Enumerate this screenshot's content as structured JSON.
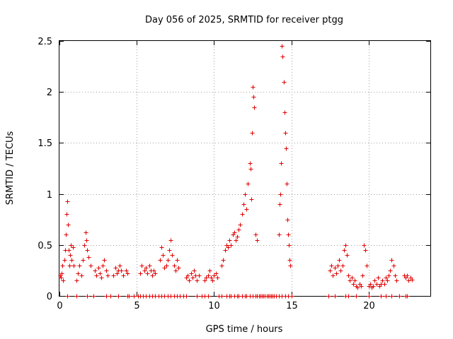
{
  "chart_data": {
    "type": "scatter",
    "title": "Day 056 of 2025, SRMTID for receiver ptgg",
    "xlabel": "GPS time / hours",
    "ylabel": "SRMTID / TECUs",
    "xlim": [
      0,
      24
    ],
    "ylim": [
      0,
      2.5
    ],
    "xticks": [
      0,
      5,
      10,
      15,
      20
    ],
    "yticks": [
      0,
      0.5,
      1,
      1.5,
      2,
      2.5
    ],
    "xtick_labels": [
      "0",
      "5",
      "10",
      "15",
      "20"
    ],
    "ytick_labels": [
      "0",
      "0.5",
      "1",
      "1.5",
      "2",
      "2.5"
    ],
    "grid": true,
    "marker": "+",
    "color": "#e00000",
    "series": [
      {
        "name": "SRMTID",
        "points": [
          [
            0.05,
            0.2
          ],
          [
            0.1,
            0.18
          ],
          [
            0.15,
            0.22
          ],
          [
            0.2,
            0.3
          ],
          [
            0.25,
            0.15
          ],
          [
            0.3,
            0.35
          ],
          [
            0.35,
            0.45
          ],
          [
            0.4,
            0.6
          ],
          [
            0.45,
            0.8
          ],
          [
            0.5,
            0.93
          ],
          [
            0.55,
            0.7
          ],
          [
            0.6,
            0.45
          ],
          [
            0.65,
            0.3
          ],
          [
            0.7,
            0.4
          ],
          [
            0.75,
            0.5
          ],
          [
            0.8,
            0.35
          ],
          [
            0.85,
            0.48
          ],
          [
            0.9,
            0.3
          ],
          [
            1.1,
            0.15
          ],
          [
            1.2,
            0.22
          ],
          [
            1.3,
            0.3
          ],
          [
            1.4,
            0.2
          ],
          [
            1.5,
            0.35
          ],
          [
            1.6,
            0.5
          ],
          [
            1.7,
            0.62
          ],
          [
            1.75,
            0.55
          ],
          [
            1.8,
            0.45
          ],
          [
            1.9,
            0.38
          ],
          [
            2.0,
            0.3
          ],
          [
            2.3,
            0.25
          ],
          [
            2.4,
            0.2
          ],
          [
            2.5,
            0.28
          ],
          [
            2.6,
            0.22
          ],
          [
            2.7,
            0.18
          ],
          [
            2.8,
            0.3
          ],
          [
            2.9,
            0.35
          ],
          [
            3.0,
            0.25
          ],
          [
            3.1,
            0.2
          ],
          [
            3.5,
            0.2
          ],
          [
            3.6,
            0.28
          ],
          [
            3.7,
            0.22
          ],
          [
            3.8,
            0.25
          ],
          [
            3.9,
            0.3
          ],
          [
            4.0,
            0.25
          ],
          [
            4.1,
            0.2
          ],
          [
            4.3,
            0.25
          ],
          [
            4.4,
            0.22
          ],
          [
            5.2,
            0.22
          ],
          [
            5.3,
            0.3
          ],
          [
            5.5,
            0.25
          ],
          [
            5.6,
            0.28
          ],
          [
            5.7,
            0.22
          ],
          [
            5.8,
            0.3
          ],
          [
            5.9,
            0.25
          ],
          [
            6.0,
            0.2
          ],
          [
            6.1,
            0.25
          ],
          [
            6.2,
            0.22
          ],
          [
            6.5,
            0.35
          ],
          [
            6.6,
            0.48
          ],
          [
            6.7,
            0.4
          ],
          [
            6.8,
            0.28
          ],
          [
            6.9,
            0.3
          ],
          [
            7.0,
            0.35
          ],
          [
            7.1,
            0.45
          ],
          [
            7.2,
            0.55
          ],
          [
            7.3,
            0.4
          ],
          [
            7.4,
            0.3
          ],
          [
            7.5,
            0.25
          ],
          [
            7.6,
            0.35
          ],
          [
            7.7,
            0.28
          ],
          [
            8.2,
            0.18
          ],
          [
            8.3,
            0.2
          ],
          [
            8.4,
            0.15
          ],
          [
            8.5,
            0.22
          ],
          [
            8.6,
            0.18
          ],
          [
            8.7,
            0.25
          ],
          [
            8.8,
            0.2
          ],
          [
            8.9,
            0.15
          ],
          [
            9.0,
            0.2
          ],
          [
            9.4,
            0.15
          ],
          [
            9.5,
            0.18
          ],
          [
            9.6,
            0.2
          ],
          [
            9.7,
            0.25
          ],
          [
            9.8,
            0.18
          ],
          [
            9.9,
            0.15
          ],
          [
            10.0,
            0.2
          ],
          [
            10.1,
            0.22
          ],
          [
            10.2,
            0.18
          ],
          [
            10.5,
            0.3
          ],
          [
            10.6,
            0.35
          ],
          [
            10.7,
            0.45
          ],
          [
            10.8,
            0.5
          ],
          [
            10.9,
            0.48
          ],
          [
            11.0,
            0.55
          ],
          [
            11.1,
            0.5
          ],
          [
            11.2,
            0.6
          ],
          [
            11.3,
            0.62
          ],
          [
            11.4,
            0.55
          ],
          [
            11.5,
            0.58
          ],
          [
            11.6,
            0.65
          ],
          [
            11.7,
            0.7
          ],
          [
            11.8,
            0.8
          ],
          [
            11.9,
            0.9
          ],
          [
            12.0,
            1.0
          ],
          [
            12.1,
            0.85
          ],
          [
            12.2,
            1.1
          ],
          [
            12.3,
            1.3
          ],
          [
            12.35,
            1.25
          ],
          [
            12.4,
            0.95
          ],
          [
            12.45,
            1.6
          ],
          [
            12.5,
            2.05
          ],
          [
            12.55,
            1.95
          ],
          [
            12.6,
            1.85
          ],
          [
            12.7,
            0.6
          ],
          [
            12.8,
            0.55
          ],
          [
            14.2,
            0.6
          ],
          [
            14.25,
            0.9
          ],
          [
            14.3,
            1.0
          ],
          [
            14.35,
            1.3
          ],
          [
            14.4,
            2.45
          ],
          [
            14.45,
            2.35
          ],
          [
            14.5,
            2.1
          ],
          [
            14.55,
            1.8
          ],
          [
            14.6,
            1.6
          ],
          [
            14.65,
            1.45
          ],
          [
            14.7,
            1.1
          ],
          [
            14.75,
            0.75
          ],
          [
            14.8,
            0.6
          ],
          [
            14.85,
            0.5
          ],
          [
            14.9,
            0.35
          ],
          [
            14.95,
            0.3
          ],
          [
            17.5,
            0.25
          ],
          [
            17.6,
            0.3
          ],
          [
            17.7,
            0.2
          ],
          [
            17.8,
            0.28
          ],
          [
            17.9,
            0.22
          ],
          [
            18.0,
            0.3
          ],
          [
            18.1,
            0.35
          ],
          [
            18.2,
            0.25
          ],
          [
            18.3,
            0.3
          ],
          [
            18.4,
            0.45
          ],
          [
            18.5,
            0.5
          ],
          [
            18.6,
            0.4
          ],
          [
            18.7,
            0.2
          ],
          [
            18.8,
            0.15
          ],
          [
            18.9,
            0.18
          ],
          [
            19.0,
            0.12
          ],
          [
            19.1,
            0.15
          ],
          [
            19.2,
            0.1
          ],
          [
            19.3,
            0.08
          ],
          [
            19.4,
            0.12
          ],
          [
            19.5,
            0.1
          ],
          [
            19.6,
            0.2
          ],
          [
            19.7,
            0.5
          ],
          [
            19.8,
            0.45
          ],
          [
            19.9,
            0.3
          ],
          [
            20.0,
            0.1
          ],
          [
            20.1,
            0.12
          ],
          [
            20.2,
            0.08
          ],
          [
            20.3,
            0.1
          ],
          [
            20.4,
            0.15
          ],
          [
            20.5,
            0.12
          ],
          [
            20.6,
            0.18
          ],
          [
            20.7,
            0.1
          ],
          [
            20.8,
            0.12
          ],
          [
            20.9,
            0.15
          ],
          [
            21.0,
            0.12
          ],
          [
            21.1,
            0.18
          ],
          [
            21.2,
            0.15
          ],
          [
            21.3,
            0.2
          ],
          [
            21.4,
            0.25
          ],
          [
            21.5,
            0.35
          ],
          [
            21.6,
            0.3
          ],
          [
            21.7,
            0.2
          ],
          [
            21.8,
            0.15
          ],
          [
            22.3,
            0.2
          ],
          [
            22.4,
            0.18
          ],
          [
            22.5,
            0.2
          ],
          [
            22.6,
            0.15
          ],
          [
            22.7,
            0.18
          ],
          [
            22.8,
            0.16
          ]
        ]
      }
    ],
    "zero_markers": [
      0.5,
      1.1,
      1.8,
      2.2,
      3.0,
      3.3,
      3.8,
      4.4,
      4.5,
      4.8,
      5.1,
      5.2,
      5.4,
      5.6,
      5.8,
      6.0,
      6.2,
      6.4,
      6.6,
      6.8,
      7.0,
      7.2,
      7.4,
      7.6,
      7.8,
      8.0,
      8.2,
      8.9,
      9.2,
      9.4,
      9.6,
      10.3,
      10.5,
      10.8,
      11.0,
      11.1,
      11.3,
      11.5,
      11.6,
      11.8,
      12.0,
      12.1,
      12.3,
      12.5,
      12.7,
      12.8,
      12.9,
      13.0,
      13.1,
      13.2,
      13.3,
      13.4,
      13.5,
      13.6,
      13.7,
      13.8,
      13.9,
      14.0,
      14.2,
      14.4,
      14.6,
      14.8,
      15.0,
      17.4,
      17.8,
      18.5,
      18.7,
      19.2,
      20.0,
      20.8,
      21.1,
      21.5,
      22.0,
      22.4,
      22.5
    ]
  }
}
